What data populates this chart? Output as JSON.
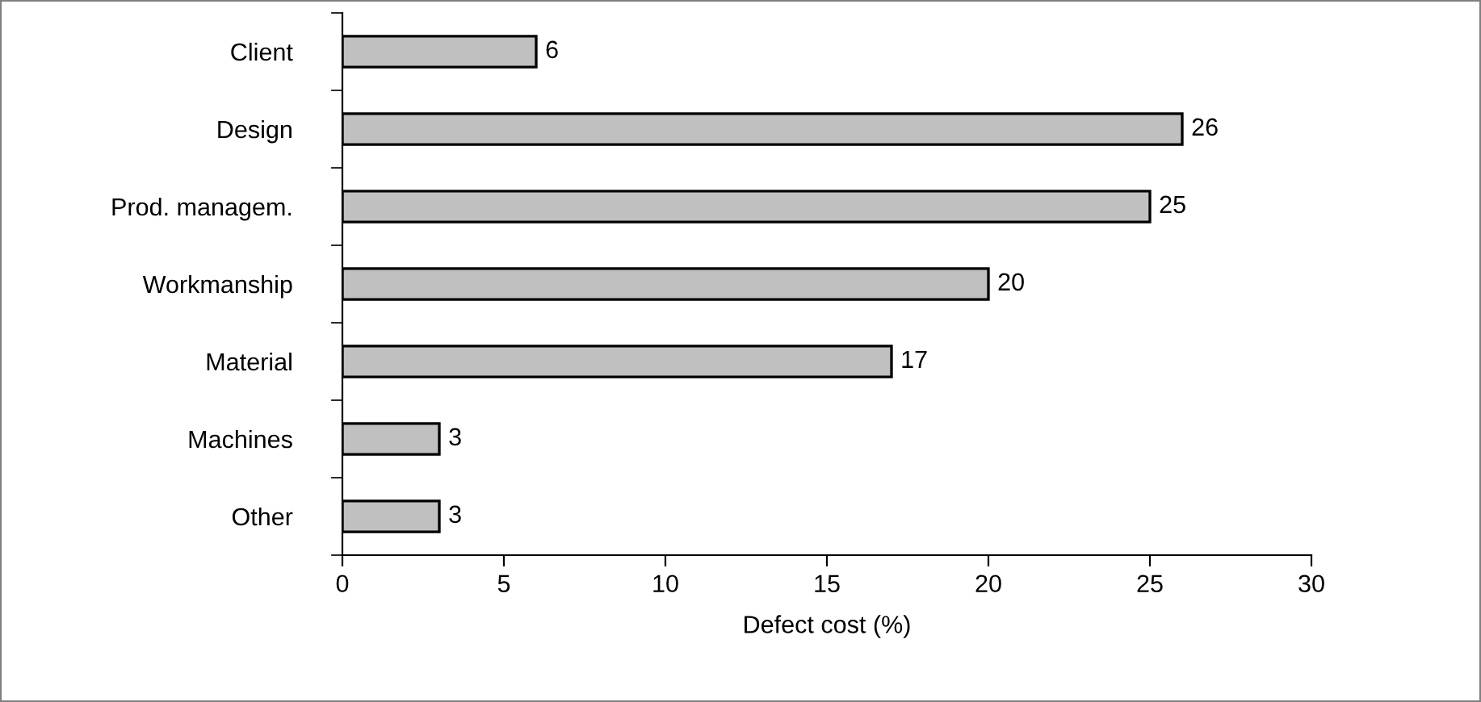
{
  "chart_data": {
    "type": "bar",
    "orientation": "horizontal",
    "categories": [
      "Client",
      "Design",
      "Prod. managem.",
      "Workmanship",
      "Material",
      "Machines",
      "Other"
    ],
    "values": [
      6,
      26,
      25,
      20,
      17,
      3,
      3
    ],
    "color": "#c0c0c0",
    "xlabel": "Defect cost (%)",
    "xlim": [
      0,
      30
    ],
    "xticks": [
      0,
      5,
      10,
      15,
      20,
      25,
      30
    ],
    "data_labels": true,
    "grid": false,
    "legend": false
  }
}
